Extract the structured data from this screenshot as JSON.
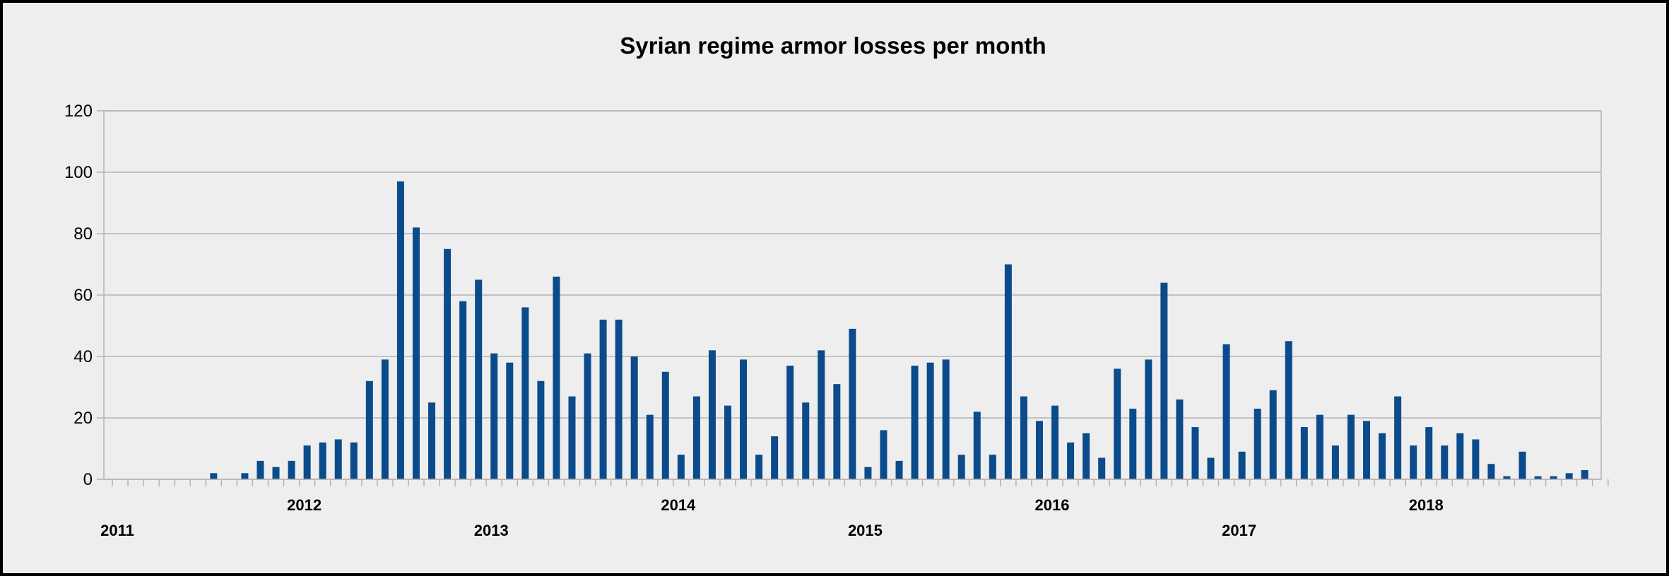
{
  "chart_data": {
    "type": "bar",
    "title": "Syrian regime armor losses per month",
    "xlabel": "",
    "ylabel": "",
    "ylim": [
      0,
      120
    ],
    "yticks": [
      "0",
      "20",
      "40",
      "60",
      "80",
      "100",
      "120"
    ],
    "grid": true,
    "legend": "none",
    "bar_color": "#0b4b8c",
    "x_year_labels": [
      "2011",
      "2012",
      "2013",
      "2014",
      "2015",
      "2016",
      "2017",
      "2018"
    ],
    "categories": [
      "2011-01",
      "2011-02",
      "2011-03",
      "2011-04",
      "2011-05",
      "2011-06",
      "2011-07",
      "2011-08",
      "2011-09",
      "2011-10",
      "2011-11",
      "2011-12",
      "2012-01",
      "2012-02",
      "2012-03",
      "2012-04",
      "2012-05",
      "2012-06",
      "2012-07",
      "2012-08",
      "2012-09",
      "2012-10",
      "2012-11",
      "2012-12",
      "2013-01",
      "2013-02",
      "2013-03",
      "2013-04",
      "2013-05",
      "2013-06",
      "2013-07",
      "2013-08",
      "2013-09",
      "2013-10",
      "2013-11",
      "2013-12",
      "2014-01",
      "2014-02",
      "2014-03",
      "2014-04",
      "2014-05",
      "2014-06",
      "2014-07",
      "2014-08",
      "2014-09",
      "2014-10",
      "2014-11",
      "2014-12",
      "2015-01",
      "2015-02",
      "2015-03",
      "2015-04",
      "2015-05",
      "2015-06",
      "2015-07",
      "2015-08",
      "2015-09",
      "2015-10",
      "2015-11",
      "2015-12",
      "2016-01",
      "2016-02",
      "2016-03",
      "2016-04",
      "2016-05",
      "2016-06",
      "2016-07",
      "2016-08",
      "2016-09",
      "2016-10",
      "2016-11",
      "2016-12",
      "2017-01",
      "2017-02",
      "2017-03",
      "2017-04",
      "2017-05",
      "2017-06",
      "2017-07",
      "2017-08",
      "2017-09",
      "2017-10",
      "2017-11",
      "2017-12",
      "2018-01",
      "2018-02",
      "2018-03",
      "2018-04",
      "2018-05",
      "2018-06",
      "2018-07",
      "2018-08",
      "2018-09",
      "2018-10",
      "2018-11",
      "2018-12"
    ],
    "values": [
      0,
      0,
      0,
      0,
      0,
      0,
      2,
      0,
      2,
      6,
      4,
      6,
      11,
      12,
      13,
      12,
      32,
      39,
      97,
      82,
      25,
      75,
      58,
      65,
      41,
      38,
      56,
      32,
      66,
      27,
      41,
      52,
      52,
      40,
      21,
      35,
      8,
      27,
      42,
      24,
      39,
      8,
      14,
      37,
      25,
      42,
      31,
      49,
      4,
      16,
      6,
      37,
      38,
      39,
      8,
      22,
      8,
      70,
      27,
      19,
      24,
      12,
      15,
      7,
      36,
      23,
      39,
      64,
      26,
      17,
      7,
      44,
      9,
      23,
      29,
      45,
      17,
      21,
      11,
      21,
      19,
      15,
      27,
      11,
      17,
      11,
      15,
      13,
      5,
      1,
      9,
      1,
      1,
      2,
      3,
      0
    ]
  }
}
